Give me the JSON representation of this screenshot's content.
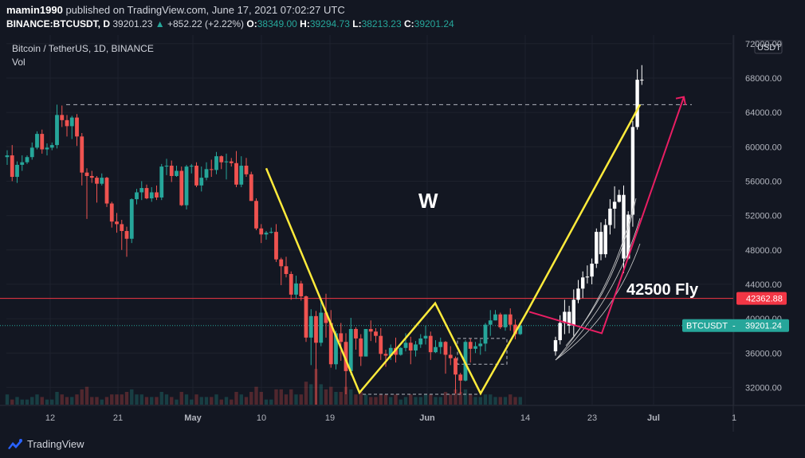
{
  "header": {
    "author": "mamin1990",
    "published": "published on TradingView.com, June 17, 2021 07:02:27 UTC",
    "symbol_line": "BINANCE:BTCUSDT, D",
    "price": "39201.23",
    "change": "+852.22 (+2.22%)",
    "o_label": "O:",
    "o": "38349.00",
    "h_label": "H:",
    "h": "39294.73",
    "l_label": "L:",
    "l": "38213.23",
    "c_label": "C:",
    "c": "39201.24"
  },
  "legend": {
    "title": "Bitcoin / TetherUS, 1D, BINANCE",
    "vol": "Vol"
  },
  "footer": {
    "brand": "TradingView"
  },
  "colors": {
    "bg": "#131722",
    "up": "#26a69a",
    "down": "#ef5350",
    "grid": "#1e222d",
    "yellow": "#ffeb3b",
    "pink": "#e91e63",
    "hline": "#f23645"
  },
  "chart_data": {
    "type": "candlestick",
    "currency": "USDT",
    "ylim": [
      30000,
      73000
    ],
    "yticks": [
      "72000.00",
      "68000.00",
      "64000.00",
      "60000.00",
      "56000.00",
      "52000.00",
      "48000.00",
      "44000.00",
      "40000.00",
      "36000.00",
      "32000.00"
    ],
    "xticks": [
      "12",
      "21",
      "May",
      "10",
      "19",
      "Jun",
      "14",
      "23",
      "Jul",
      "1"
    ],
    "price_labels": [
      {
        "text": "42362.88",
        "value": 42362.88,
        "color": "#f23645"
      },
      {
        "text": "BTCUSDT",
        "value2": "39201.24",
        "value": 39201.24,
        "color": "#26a69a"
      }
    ],
    "annotations": {
      "w_label": "W",
      "fly_label": "42500  Fly"
    },
    "candles": [
      [
        58800,
        59600,
        57900,
        59000
      ],
      [
        59000,
        60200,
        56000,
        56500
      ],
      [
        56500,
        58300,
        55800,
        57900
      ],
      [
        57900,
        59000,
        57200,
        58200
      ],
      [
        58200,
        59000,
        58000,
        58800
      ],
      [
        58800,
        60500,
        58500,
        59900
      ],
      [
        59900,
        61800,
        59700,
        61500
      ],
      [
        61500,
        62000,
        59200,
        59700
      ],
      [
        59700,
        60400,
        59000,
        59900
      ],
      [
        59900,
        60500,
        59600,
        60200
      ],
      [
        60200,
        64900,
        59800,
        63700
      ],
      [
        63700,
        64800,
        62300,
        63100
      ],
      [
        63100,
        63700,
        61200,
        62400
      ],
      [
        62400,
        63600,
        60900,
        63400
      ],
      [
        63400,
        63800,
        60100,
        61200
      ],
      [
        61200,
        61600,
        55500,
        57000
      ],
      [
        57000,
        57500,
        51600,
        56600
      ],
      [
        56600,
        57200,
        55800,
        56400
      ],
      [
        56400,
        56600,
        53500,
        55700
      ],
      [
        55700,
        56900,
        55500,
        56400
      ],
      [
        56400,
        56500,
        53000,
        53400
      ],
      [
        53400,
        53600,
        50600,
        51300
      ],
      [
        51300,
        52300,
        50000,
        51000
      ],
      [
        51000,
        51500,
        48000,
        50200
      ],
      [
        50200,
        50700,
        47200,
        49300
      ],
      [
        49300,
        54000,
        48800,
        53900
      ],
      [
        53900,
        55100,
        53300,
        54700
      ],
      [
        54700,
        56000,
        53800,
        55200
      ],
      [
        55200,
        55600,
        53900,
        54000
      ],
      [
        54000,
        55300,
        53600,
        54700
      ],
      [
        54700,
        55500,
        53800,
        54100
      ],
      [
        54100,
        58000,
        53800,
        57700
      ],
      [
        57700,
        58600,
        56700,
        57800
      ],
      [
        57800,
        58400,
        55900,
        56600
      ],
      [
        56600,
        57800,
        56500,
        57200
      ],
      [
        57200,
        57700,
        53100,
        53200
      ],
      [
        53200,
        57900,
        52700,
        57700
      ],
      [
        57700,
        58000,
        56900,
        57800
      ],
      [
        57800,
        58200,
        55300,
        55500
      ],
      [
        55500,
        57700,
        54800,
        56400
      ],
      [
        56400,
        58200,
        56100,
        57400
      ],
      [
        57400,
        58500,
        56500,
        57300
      ],
      [
        57300,
        59400,
        56800,
        58900
      ],
      [
        58900,
        59000,
        57400,
        58200
      ],
      [
        58200,
        59200,
        56200,
        58300
      ],
      [
        58300,
        58700,
        57700,
        58100
      ],
      [
        58100,
        59500,
        55300,
        55600
      ],
      [
        55600,
        58900,
        55300,
        57800
      ],
      [
        57800,
        58700,
        56500,
        56800
      ],
      [
        56800,
        57100,
        53700,
        53700
      ],
      [
        53700,
        54000,
        50300,
        50500
      ],
      [
        50500,
        51000,
        48800,
        49800
      ],
      [
        49800,
        50200,
        49200,
        50000
      ],
      [
        50000,
        50600,
        49900,
        50100
      ],
      [
        50100,
        51000,
        46600,
        46900
      ],
      [
        46900,
        47100,
        43900,
        46100
      ],
      [
        46100,
        47200,
        44800,
        45200
      ],
      [
        45200,
        45500,
        42200,
        42800
      ],
      [
        42800,
        45000,
        42300,
        44100
      ],
      [
        44100,
        44400,
        42100,
        42600
      ],
      [
        42600,
        42700,
        37300,
        37800
      ],
      [
        37800,
        41100,
        34600,
        40300
      ],
      [
        40300,
        40900,
        30000,
        37200
      ],
      [
        37200,
        42200,
        36800,
        40700
      ],
      [
        40700,
        42900,
        37800,
        39500
      ],
      [
        39500,
        41000,
        34300,
        34700
      ],
      [
        34700,
        38600,
        34100,
        38300
      ],
      [
        38300,
        39500,
        35100,
        37300
      ],
      [
        37300,
        38300,
        31200,
        33900
      ],
      [
        33900,
        40100,
        33400,
        38800
      ],
      [
        38800,
        39000,
        36400,
        37700
      ],
      [
        37700,
        38200,
        34500,
        35600
      ],
      [
        35600,
        38800,
        35600,
        38800
      ],
      [
        38800,
        39800,
        37400,
        38500
      ],
      [
        38500,
        38900,
        37200,
        38000
      ],
      [
        38000,
        38900,
        35200,
        35900
      ],
      [
        35900,
        36400,
        34400,
        35700
      ],
      [
        35700,
        37000,
        35200,
        36600
      ],
      [
        36600,
        37800,
        34900,
        35800
      ],
      [
        35800,
        36700,
        35700,
        36600
      ],
      [
        36600,
        38300,
        36200,
        37200
      ],
      [
        37200,
        37900,
        34700,
        36300
      ],
      [
        36300,
        37400,
        35600,
        37000
      ],
      [
        37000,
        38200,
        36600,
        37700
      ],
      [
        37700,
        39200,
        37000,
        38000
      ],
      [
        38000,
        38500,
        35200,
        36100
      ],
      [
        36100,
        37500,
        36000,
        36700
      ],
      [
        36700,
        37800,
        35900,
        37300
      ],
      [
        37300,
        37400,
        33600,
        35800
      ],
      [
        35800,
        36800,
        34600,
        35400
      ],
      [
        35400,
        35600,
        31300,
        33500
      ],
      [
        33500,
        33700,
        31200,
        32800
      ],
      [
        32800,
        37500,
        32700,
        37300
      ],
      [
        37300,
        37700,
        34900,
        36500
      ],
      [
        36500,
        37300,
        36000,
        36800
      ],
      [
        36800,
        37600,
        35800,
        37100
      ],
      [
        37100,
        39500,
        36200,
        39300
      ],
      [
        39300,
        41000,
        38000,
        39800
      ],
      [
        39800,
        41000,
        39800,
        40500
      ],
      [
        40500,
        40700,
        38800,
        39000
      ],
      [
        39000,
        40500,
        38600,
        40500
      ],
      [
        40500,
        41200,
        38600,
        39300
      ],
      [
        39300,
        39900,
        37600,
        38200
      ],
      [
        38200,
        39300,
        38100,
        39200
      ]
    ],
    "white_candles": [
      [
        36200,
        37900,
        35700,
        37500
      ],
      [
        37500,
        40400,
        37000,
        39500
      ],
      [
        39500,
        42200,
        38200,
        40800
      ],
      [
        40800,
        41500,
        38300,
        39200
      ],
      [
        39200,
        43400,
        38000,
        42200
      ],
      [
        42200,
        44500,
        41800,
        43500
      ],
      [
        43500,
        45500,
        42400,
        44800
      ],
      [
        44800,
        46200,
        44100,
        44900
      ],
      [
        44900,
        47000,
        44000,
        46400
      ],
      [
        46400,
        50500,
        45900,
        50100
      ],
      [
        50100,
        51200,
        46800,
        47500
      ],
      [
        47500,
        51600,
        47100,
        50900
      ],
      [
        50900,
        53900,
        49800,
        52800
      ],
      [
        52800,
        55400,
        50500,
        53600
      ],
      [
        53600,
        55000,
        53500,
        54400
      ],
      [
        54400,
        55500,
        45300,
        47000
      ],
      [
        47000,
        52500,
        46900,
        52100
      ],
      [
        52100,
        63000,
        50700,
        62300
      ],
      [
        62300,
        69000,
        62000,
        67800
      ],
      [
        67800,
        69500,
        67200,
        67800
      ]
    ],
    "volume": [
      4,
      2,
      3,
      2,
      2,
      3,
      4,
      3,
      2,
      2,
      5,
      4,
      3,
      3,
      4,
      6,
      7,
      3,
      3,
      2,
      3,
      4,
      4,
      4,
      5,
      6,
      4,
      4,
      3,
      3,
      3,
      5,
      4,
      3,
      2,
      5,
      4,
      2,
      4,
      3,
      3,
      3,
      4,
      2,
      3,
      2,
      5,
      4,
      3,
      5,
      7,
      5,
      2,
      2,
      6,
      6,
      4,
      6,
      4,
      4,
      9,
      8,
      14,
      8,
      6,
      7,
      5,
      5,
      7,
      6,
      4,
      5,
      4,
      3,
      3,
      4,
      4,
      3,
      4,
      2,
      3,
      4,
      3,
      3,
      4,
      4,
      3,
      3,
      5,
      4,
      6,
      5,
      6,
      4,
      3,
      3,
      4,
      4,
      3,
      3,
      3,
      4,
      3,
      3
    ]
  }
}
